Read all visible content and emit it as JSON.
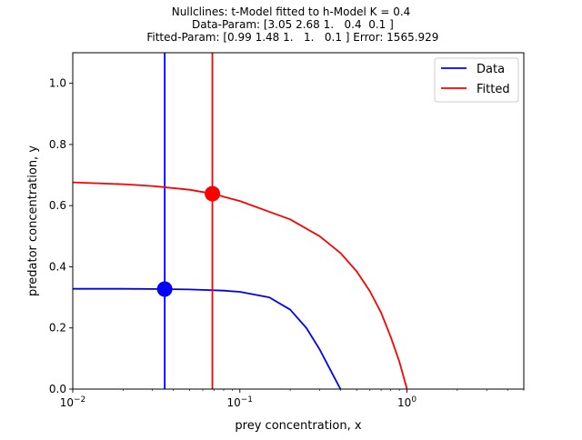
{
  "chart_data": {
    "type": "line",
    "title_lines": [
      "Nullclines: t-Model fitted to h-Model K = 0.4",
      " Data-Param: [3.05 2.68 1.   0.4  0.1 ]",
      " Fitted-Param: [0.99 1.48 1.   1.   0.1 ] Error: 1565.929"
    ],
    "xlabel": "prey concentration, x",
    "ylabel": "predator concentration, y",
    "xscale": "log",
    "xlim": [
      0.01,
      5.0
    ],
    "ylim": [
      0.0,
      1.1
    ],
    "x_ticks": [
      {
        "value": 0.01,
        "base": "10",
        "exp": "−2"
      },
      {
        "value": 0.1,
        "base": "10",
        "exp": "−1"
      },
      {
        "value": 1.0,
        "base": "10",
        "exp": "0"
      }
    ],
    "y_ticks": [
      {
        "value": 0.0,
        "label": "0.0"
      },
      {
        "value": 0.2,
        "label": "0.2"
      },
      {
        "value": 0.4,
        "label": "0.4"
      },
      {
        "value": 0.6,
        "label": "0.6"
      },
      {
        "value": 0.8,
        "label": "0.8"
      },
      {
        "value": 1.0,
        "label": "1.0"
      }
    ],
    "grid": false,
    "legend": {
      "position": "top-right"
    },
    "series": [
      {
        "name": "Data",
        "color": "#0000ff",
        "vertical_x": 0.0355,
        "curve": {
          "x": [
            0.01,
            0.02,
            0.0355,
            0.05,
            0.08,
            0.1,
            0.15,
            0.2,
            0.25,
            0.3,
            0.35,
            0.4
          ],
          "y": [
            0.328,
            0.328,
            0.327,
            0.326,
            0.322,
            0.318,
            0.3,
            0.26,
            0.2,
            0.13,
            0.06,
            0.0
          ]
        },
        "equilibrium": {
          "x": 0.0355,
          "y": 0.327
        }
      },
      {
        "name": "Fitted",
        "color": "#ff0000",
        "vertical_x": 0.0685,
        "curve": {
          "x": [
            0.01,
            0.02,
            0.03,
            0.05,
            0.0685,
            0.1,
            0.15,
            0.2,
            0.3,
            0.4,
            0.5,
            0.6,
            0.7,
            0.8,
            0.9,
            1.0
          ],
          "y": [
            0.676,
            0.67,
            0.664,
            0.652,
            0.639,
            0.615,
            0.58,
            0.555,
            0.5,
            0.445,
            0.385,
            0.32,
            0.25,
            0.17,
            0.09,
            0.0
          ]
        },
        "equilibrium": {
          "x": 0.0685,
          "y": 0.639
        }
      }
    ]
  }
}
